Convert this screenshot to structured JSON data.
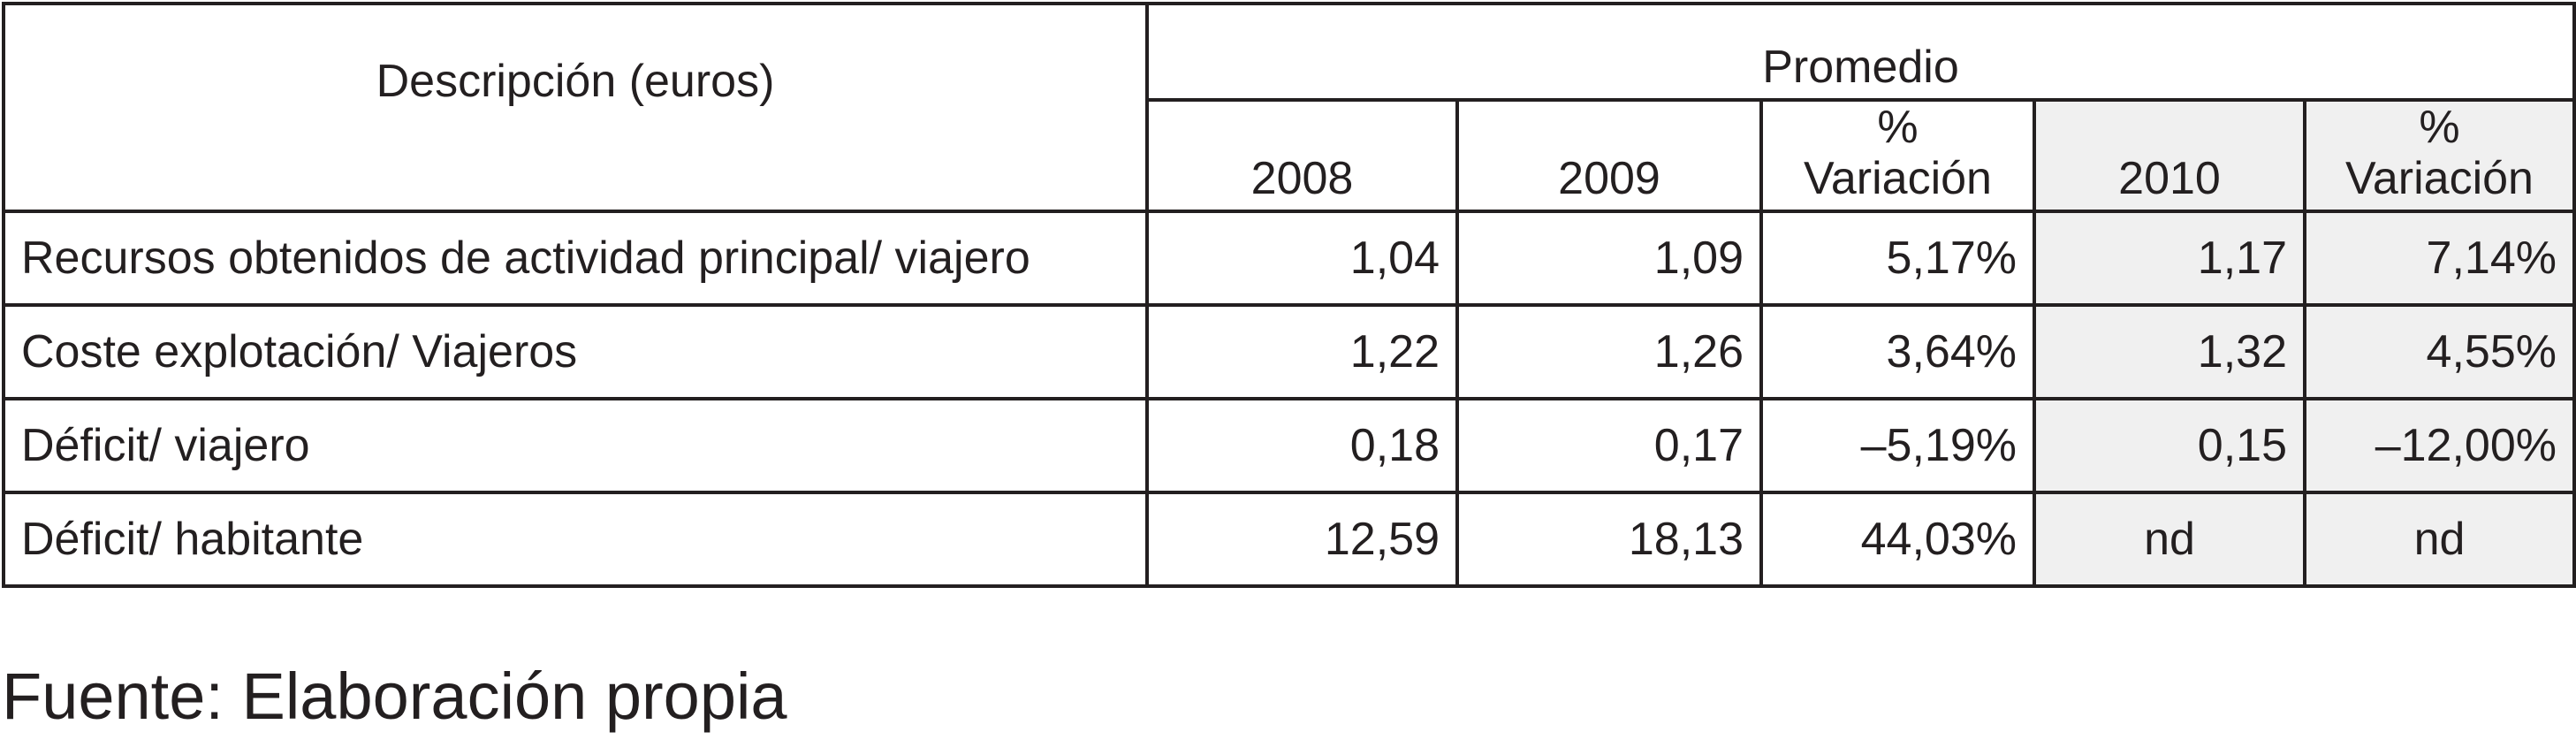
{
  "table": {
    "description_header": "Descripción (euros)",
    "group_header": "Promedio",
    "columns": [
      {
        "label": "2008"
      },
      {
        "label": "2009"
      },
      {
        "symbol": "%",
        "label": "Variación"
      },
      {
        "label": "2010"
      },
      {
        "symbol": "%",
        "label": "Variación"
      }
    ],
    "rows": [
      [
        "Recursos obtenidos de actividad principal/ viajero",
        "1,04",
        "1,09",
        "5,17%",
        "1,17",
        "7,14%"
      ],
      [
        "Coste explotación/ Viajeros",
        "1,22",
        "1,26",
        "3,64%",
        "1,32",
        "4,55%"
      ],
      [
        "Déficit/ viajero",
        "0,18",
        "0,17",
        "–5,19%",
        "0,15",
        "–12,00%"
      ],
      [
        "Déficit/ habitante",
        "12,59",
        "18,13",
        "44,03%",
        "nd",
        "nd"
      ]
    ]
  },
  "footnote": "Fuente: Elaboración propia"
}
